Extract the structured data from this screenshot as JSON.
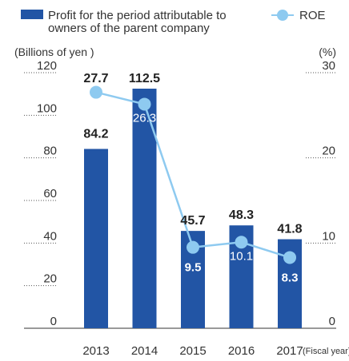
{
  "chart_data": {
    "type": "bar",
    "categories": [
      "2013",
      "2014",
      "2015",
      "2016",
      "2017"
    ],
    "x_suffix": "(Fiscal year)",
    "series": [
      {
        "name": "Profit for the period attributable to owners of the parent company",
        "kind": "bar",
        "axis": "left",
        "color": "#2255a5",
        "values": [
          84.2,
          112.5,
          45.7,
          48.3,
          41.8
        ],
        "labels": [
          "84.2",
          "112.5",
          "45.7",
          "48.3",
          "41.8"
        ]
      },
      {
        "name": "ROE",
        "kind": "line",
        "axis": "right",
        "color": "#8ecaf0",
        "values": [
          27.7,
          26.3,
          9.5,
          10.1,
          8.3
        ],
        "labels": [
          "27.7",
          "26.3",
          "9.5",
          "10.1",
          "8.3"
        ]
      }
    ],
    "legend": {
      "position": "top",
      "bar_label_lines": [
        "Profit for the period attributable to",
        "owners of the parent company"
      ],
      "line_label": "ROE"
    },
    "y_left": {
      "label": "(Billions of yen )",
      "range": [
        0,
        120
      ],
      "ticks": [
        0,
        20,
        40,
        60,
        80,
        100,
        120
      ],
      "tick_labels": [
        "0",
        "20",
        "40",
        "60",
        "80",
        "100",
        "120"
      ]
    },
    "y_right": {
      "label": "(%)",
      "range": [
        0,
        30
      ],
      "ticks": [
        0,
        10,
        20,
        30
      ],
      "tick_labels": [
        "0",
        "10",
        "20",
        "30"
      ]
    },
    "grid": false
  }
}
